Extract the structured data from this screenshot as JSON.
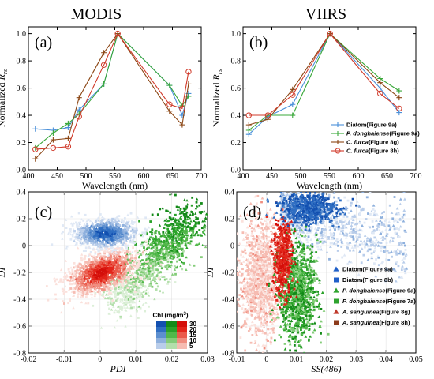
{
  "titles": {
    "left": "MODIS",
    "right": "VIIRS"
  },
  "colors": {
    "diatom": "#1f5fc8",
    "pdong": "#2ea32e",
    "cfurca_g": "#8b4513",
    "cfurca_h": "#d03a2a",
    "red": "#e8201a"
  },
  "chart_data": [
    {
      "panel": "(a)",
      "type": "line",
      "xlabel": "Wavelength (nm)",
      "ylabel_main": "Normalized ",
      "ylabel_r": "R",
      "ylabel_sub": "rs",
      "xlim": [
        400,
        700
      ],
      "ylim": [
        0,
        1.05
      ],
      "xticks": [
        400,
        450,
        500,
        550,
        600,
        650,
        700
      ],
      "yticks": [
        0,
        0.2,
        0.4,
        0.6,
        0.8,
        1.0
      ],
      "ytick_labels": [
        "0.0",
        "0.2",
        "0.4",
        "0.6",
        "0.8",
        "1.0"
      ],
      "series": [
        {
          "key": "diatom",
          "color": "#4a90d9",
          "marker": "plus",
          "x": [
            412,
            443,
            469,
            488,
            531,
            555,
            645,
            667,
            678
          ],
          "y": [
            0.3,
            0.29,
            0.31,
            0.44,
            0.63,
            1.0,
            0.62,
            0.4,
            0.56
          ]
        },
        {
          "key": "pdong",
          "color": "#3aa83a",
          "marker": "plus",
          "x": [
            412,
            443,
            469,
            488,
            531,
            555,
            645,
            667,
            678
          ],
          "y": [
            0.16,
            0.27,
            0.34,
            0.41,
            0.63,
            1.0,
            0.62,
            0.47,
            0.54
          ]
        },
        {
          "key": "cfurca_g",
          "color": "#8b4513",
          "marker": "plus",
          "x": [
            412,
            443,
            469,
            488,
            531,
            555,
            645,
            667,
            678
          ],
          "y": [
            0.08,
            0.22,
            0.23,
            0.53,
            0.86,
            1.0,
            0.43,
            0.33,
            0.63
          ]
        },
        {
          "key": "cfurca_h",
          "color": "#d03a2a",
          "marker": "circle",
          "x": [
            412,
            443,
            469,
            488,
            531,
            555,
            645,
            667,
            678
          ],
          "y": [
            0.15,
            0.16,
            0.17,
            0.39,
            0.77,
            1.0,
            0.48,
            0.45,
            0.72
          ]
        }
      ]
    },
    {
      "panel": "(b)",
      "type": "line",
      "xlabel": "Wavelength (nm)",
      "ylabel_main": "Normalized ",
      "ylabel_r": "R",
      "ylabel_sub": "rs",
      "xlim": [
        400,
        700
      ],
      "ylim": [
        0,
        1.05
      ],
      "xticks": [
        400,
        450,
        500,
        550,
        600,
        650,
        700
      ],
      "yticks": [
        0,
        0.2,
        0.4,
        0.6,
        0.8,
        1.0
      ],
      "ytick_labels": [
        "0.0",
        "0.2",
        "0.4",
        "0.6",
        "0.8",
        "1.0"
      ],
      "series": [
        {
          "key": "diatom",
          "color": "#4a90d9",
          "marker": "plus",
          "x": [
            410,
            443,
            486,
            551,
            638,
            671
          ],
          "y": [
            0.26,
            0.39,
            0.48,
            1.0,
            0.6,
            0.42
          ]
        },
        {
          "key": "pdong",
          "color": "#3aa83a",
          "marker": "plus",
          "x": [
            410,
            443,
            486,
            551,
            638,
            671
          ],
          "y": [
            0.29,
            0.4,
            0.4,
            1.0,
            0.67,
            0.58
          ]
        },
        {
          "key": "cfurca_g",
          "color": "#8b4513",
          "marker": "plus",
          "x": [
            410,
            443,
            486,
            551,
            638,
            671
          ],
          "y": [
            0.33,
            0.37,
            0.59,
            1.0,
            0.64,
            0.53
          ]
        },
        {
          "key": "cfurca_h",
          "color": "#d03a2a",
          "marker": "circle",
          "x": [
            410,
            443,
            486,
            551,
            638,
            671
          ],
          "y": [
            0.4,
            0.4,
            0.55,
            1.0,
            0.56,
            0.45
          ]
        }
      ],
      "legend": [
        {
          "key": "diatom",
          "name": "Diatom(Figure 9a)",
          "italic": "",
          "rest": ""
        },
        {
          "key": "pdong",
          "name": "",
          "italic": "P. donghaiense",
          "rest": "(Figure 9a)"
        },
        {
          "key": "cfurca_g",
          "name": "",
          "italic": "C. furca",
          "rest": "(Figure 8g)"
        },
        {
          "key": "cfurca_h",
          "name": "",
          "italic": "C. furca",
          "rest": "(Figure 8h)"
        }
      ]
    },
    {
      "panel": "(c)",
      "type": "scatter",
      "xlabel": "PDI",
      "ylabel": "DI",
      "xlim": [
        -0.02,
        0.03
      ],
      "ylim": [
        -0.8,
        0.4
      ],
      "xticks": [
        -0.02,
        -0.01,
        0,
        0.01,
        0.02,
        0.03
      ],
      "xtick_labels": [
        "-0.02",
        "-0.01",
        "0",
        "0.01",
        "0.02",
        "0.03"
      ],
      "yticks": [
        -0.8,
        -0.6,
        -0.4,
        -0.2,
        0,
        0.2,
        0.4
      ],
      "ytick_labels": [
        "-0.8",
        "-0.6",
        "-0.4",
        "-0.2",
        "0",
        "0.2",
        "0.4"
      ],
      "clusters": [
        {
          "group": "diatom",
          "cx": 0.0015,
          "cy": 0.09,
          "sx": 0.0045,
          "sy": 0.055,
          "n": 900
        },
        {
          "group": "red",
          "cx": 0.0005,
          "cy": -0.2,
          "sx": 0.005,
          "sy": 0.075,
          "n": 1200
        },
        {
          "group": "green",
          "cx": 0.016,
          "cy": -0.05,
          "sx": 0.0055,
          "sy": 0.15,
          "n": 1200
        }
      ],
      "colorbar": {
        "title": "Chl (mg/m",
        "title_sup": "3",
        "title_end": ")",
        "labels": [
          "30",
          "20",
          "15",
          "10",
          "5"
        ]
      }
    },
    {
      "panel": "(d)",
      "type": "scatter",
      "xlabel": "SS(486)",
      "ylabel": "DI",
      "xlim": [
        -0.01,
        0.05
      ],
      "ylim": [
        -0.8,
        0.4
      ],
      "xticks": [
        -0.01,
        0,
        0.01,
        0.02,
        0.03,
        0.04,
        0.05
      ],
      "xtick_labels": [
        "-0.01",
        "0",
        "0.01",
        "0.02",
        "0.03",
        "0.04",
        "0.05"
      ],
      "yticks": [
        -0.8,
        -0.6,
        -0.4,
        -0.2,
        0,
        0.2,
        0.4
      ],
      "ytick_labels": [
        "-0.8",
        "-0.6",
        "-0.4",
        "-0.2",
        "0",
        "0.2",
        "0.4"
      ],
      "legend": [
        {
          "marker": "triangle",
          "color": "#1f5fc8",
          "name": "Diatom(Figure 9a)",
          "italic": "",
          "rest": ""
        },
        {
          "marker": "square",
          "color": "#1f5fc8",
          "name": "Diatom(Figure 8b)",
          "italic": "",
          "rest": ""
        },
        {
          "marker": "triangle",
          "color": "#2ea32e",
          "name": "",
          "italic": "P. donghaiense",
          "rest": "(Figure 9a)"
        },
        {
          "marker": "square",
          "color": "#2ea32e",
          "name": "",
          "italic": "P. donghaiense",
          "rest": "(Figure 7a)"
        },
        {
          "marker": "triangle",
          "color": "#c0392b",
          "name": "",
          "italic": "A. sanguinea",
          "rest": "(Figure 8g)"
        },
        {
          "marker": "square",
          "color": "#8b3a1a",
          "name": "",
          "italic": "A. sanguinea",
          "rest": "(Figure 8h)"
        }
      ]
    }
  ]
}
